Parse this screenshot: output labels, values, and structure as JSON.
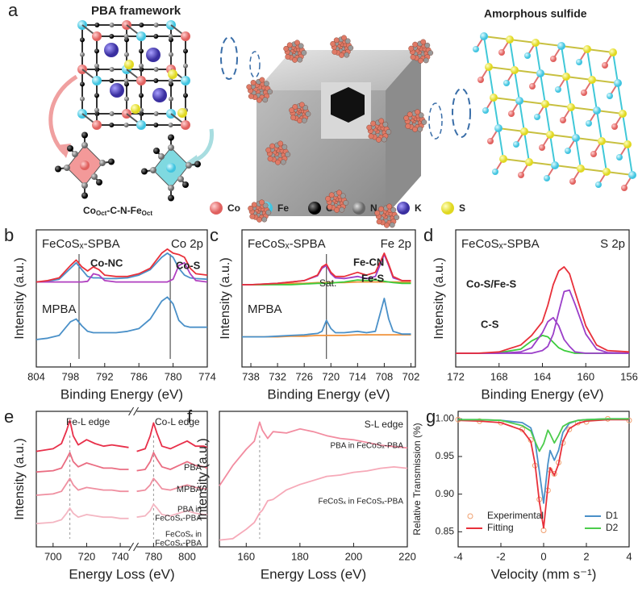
{
  "figure": {
    "panel": "a",
    "left_title": "PBA framework",
    "right_title": "Amorphous sulfide",
    "formula": [
      "Co",
      "Oct",
      "-C-N-Fe",
      "Oct"
    ],
    "legend": [
      "Co",
      "Fe",
      "C",
      "N",
      "K",
      "S"
    ]
  },
  "chart_data": [
    {
      "type": "line",
      "panel": "b",
      "xlabel": "Binding Energy (eV)",
      "ylabel": "Intensity (a.u.)",
      "xlim": [
        804,
        774
      ],
      "xticks": [
        804,
        798,
        792,
        786,
        780,
        774
      ],
      "ylim": [
        0,
        10
      ],
      "vlines": [
        796.5,
        780.5
      ],
      "annotations": [
        {
          "text": "FeCoSₓ-SPBA"
        },
        {
          "text": "Co 2p"
        },
        {
          "text": "Co-NC",
          "color": "#4a90c8"
        },
        {
          "text": "Co-S",
          "color": "#b03fc0"
        },
        {
          "text": "MPBA"
        }
      ],
      "x": [
        804,
        802,
        800,
        798,
        797,
        796,
        795,
        794,
        793,
        792,
        790,
        788,
        786,
        784,
        782,
        781,
        780,
        779,
        778,
        777,
        776,
        774
      ],
      "series": [
        {
          "color": "#4a90c8",
          "values": [
            6.2,
            6.25,
            6.4,
            7.2,
            7.6,
            7.1,
            6.6,
            6.5,
            6.5,
            6.45,
            6.45,
            6.5,
            6.7,
            7.1,
            8.0,
            8.3,
            8.0,
            7.2,
            6.7,
            6.5,
            6.45,
            6.4
          ]
        },
        {
          "color": "#b03fc0",
          "values": [
            6.2,
            6.2,
            6.2,
            6.2,
            6.2,
            6.2,
            6.25,
            6.8,
            6.7,
            6.3,
            6.2,
            6.2,
            6.2,
            6.2,
            6.2,
            6.2,
            6.4,
            7.4,
            7.6,
            6.8,
            6.3,
            6.2
          ]
        },
        {
          "color": "#e8303a",
          "values": [
            6.2,
            6.3,
            6.5,
            7.4,
            7.8,
            7.3,
            7.0,
            7.3,
            7.1,
            6.7,
            6.6,
            6.6,
            6.8,
            7.2,
            8.3,
            8.6,
            8.3,
            8.2,
            8.0,
            7.2,
            6.8,
            6.7
          ]
        },
        {
          "color": "#4a90c8",
          "values": [
            2.0,
            2.1,
            2.3,
            3.3,
            3.5,
            3.0,
            2.6,
            2.5,
            2.5,
            2.5,
            2.5,
            2.6,
            2.8,
            3.5,
            4.8,
            5.1,
            4.6,
            3.4,
            3.0,
            2.9,
            2.9,
            2.9
          ]
        }
      ]
    },
    {
      "type": "line",
      "panel": "c",
      "xlabel": "Binding Energy (eV)",
      "ylabel": "Intensity (a.u.)",
      "xlim": [
        740,
        701
      ],
      "xticks": [
        738,
        732,
        726,
        720,
        714,
        708,
        702
      ],
      "ylim": [
        0,
        10
      ],
      "vlines": [
        721
      ],
      "annotations": [
        {
          "text": "FeCoSₓ-SPBA"
        },
        {
          "text": "Fe 2p"
        },
        {
          "text": "Fe-CN",
          "color": "#9b3fc9"
        },
        {
          "text": "Fe-S",
          "color": "#3ccc3c"
        },
        {
          "text": "Sat."
        },
        {
          "text": "MPBA"
        }
      ],
      "x": [
        740,
        738,
        735,
        732,
        729,
        726,
        723,
        722,
        721,
        720,
        719,
        717,
        714,
        712,
        710,
        709,
        708,
        707,
        706,
        704,
        702
      ],
      "series": [
        {
          "color": "#f0923a",
          "values": [
            6.0,
            6.0,
            6.0,
            6.05,
            6.1,
            6.1,
            6.15,
            6.15,
            6.15,
            6.15,
            6.15,
            6.15,
            6.2,
            6.2,
            6.2,
            6.2,
            6.2,
            6.2,
            6.2,
            6.2,
            6.2
          ]
        },
        {
          "color": "#3ccc3c",
          "values": [
            6.0,
            6.0,
            6.0,
            6.0,
            6.0,
            6.05,
            6.1,
            6.1,
            6.1,
            6.1,
            6.15,
            6.2,
            6.35,
            6.3,
            6.35,
            6.3,
            6.25,
            6.2,
            6.15,
            6.1,
            6.1
          ]
        },
        {
          "color": "#9b3fc9",
          "values": [
            6.0,
            6.0,
            6.05,
            6.1,
            6.2,
            6.3,
            6.65,
            7.2,
            7.4,
            6.8,
            6.5,
            6.45,
            6.6,
            6.45,
            6.6,
            7.4,
            8.2,
            7.4,
            6.5,
            6.3,
            6.3
          ]
        },
        {
          "color": "#e8303a",
          "values": [
            6.0,
            6.0,
            6.05,
            6.1,
            6.2,
            6.3,
            6.7,
            7.3,
            7.5,
            6.9,
            6.6,
            6.6,
            6.9,
            6.7,
            6.9,
            7.6,
            8.3,
            7.5,
            6.6,
            6.3,
            6.3
          ]
        },
        {
          "color": "#f0923a",
          "values": [
            2.2,
            2.2,
            2.2,
            2.2,
            2.25,
            2.25,
            2.3,
            2.3,
            2.3,
            2.3,
            2.3,
            2.3,
            2.35,
            2.35,
            2.35,
            2.35,
            2.35,
            2.35,
            2.35,
            2.35,
            2.35
          ]
        },
        {
          "color": "#4a90c8",
          "values": [
            2.2,
            2.2,
            2.2,
            2.25,
            2.3,
            2.35,
            2.45,
            2.6,
            3.4,
            2.8,
            2.5,
            2.5,
            2.6,
            2.5,
            2.6,
            3.8,
            5.0,
            3.5,
            2.6,
            2.4,
            2.4
          ]
        }
      ]
    },
    {
      "type": "line",
      "panel": "d",
      "xlabel": "Binding Energy (eV)",
      "ylabel": "Intensity (a.u.)",
      "xlim": [
        172,
        156
      ],
      "xticks": [
        172,
        168,
        164,
        160,
        156
      ],
      "ylim": [
        0,
        10
      ],
      "annotations": [
        {
          "text": "FeCoSₓ-SPBA"
        },
        {
          "text": "S 2p"
        },
        {
          "text": "Co-S/Fe-S",
          "color": "#9b3fc9"
        },
        {
          "text": "C-S",
          "color": "#3ccc3c"
        }
      ],
      "x": [
        172,
        170,
        168,
        166,
        165,
        164,
        163.5,
        163,
        162.5,
        162,
        161.5,
        161,
        160,
        159,
        158,
        156
      ],
      "series": [
        {
          "color": "#3ccc3c",
          "values": [
            1.0,
            1.0,
            1.05,
            1.3,
            1.9,
            2.3,
            2.2,
            1.8,
            1.4,
            1.2,
            1.1,
            1.0,
            1.0,
            1.0,
            1.0,
            1.0
          ]
        },
        {
          "color": "#9b3fc9",
          "values": [
            1.0,
            1.0,
            1.0,
            1.1,
            1.4,
            2.5,
            3.3,
            3.6,
            3.0,
            2.0,
            1.5,
            1.1,
            1.0,
            1.0,
            1.0,
            1.0
          ]
        },
        {
          "color": "#9b3fc9",
          "values": [
            1.0,
            1.0,
            1.0,
            1.0,
            1.0,
            1.2,
            1.5,
            2.4,
            4.0,
            5.5,
            5.6,
            4.6,
            2.4,
            1.3,
            1.05,
            1.0
          ]
        },
        {
          "color": "#e8303a",
          "values": [
            1.0,
            1.0,
            1.1,
            1.6,
            2.3,
            3.3,
            4.5,
            6.0,
            7.0,
            7.3,
            6.8,
            5.5,
            3.0,
            1.6,
            1.2,
            1.1
          ]
        }
      ]
    },
    {
      "type": "line",
      "panel": "e",
      "xlabel": "Energy Loss (eV)",
      "ylabel": "Intensity (a.u.)",
      "xlim": [
        690,
        812
      ],
      "xbreak": [
        746,
        770
      ],
      "xticks": [
        700,
        720,
        740,
        780,
        800
      ],
      "ylim": [
        0,
        10.5
      ],
      "vlines": [
        710,
        780
      ],
      "annotations": [
        {
          "text": "Fe-L edge"
        },
        {
          "text": "Co-L edge"
        },
        {
          "text": "PBA"
        },
        {
          "text": "MPBA"
        },
        {
          "text": "PBA in"
        },
        {
          "text": "FeCoSₓ-PBA"
        },
        {
          "text": "FeCoSₓ in"
        },
        {
          "text": "FeCoSₓ-PBA"
        }
      ],
      "x": [
        690,
        700,
        705,
        708,
        710,
        712,
        715,
        720,
        725,
        730,
        735,
        740,
        745,
        770,
        775,
        778,
        780,
        782,
        785,
        790,
        795,
        800,
        805,
        810,
        812
      ],
      "series": [
        {
          "color": "#e8304a",
          "values": [
            7.4,
            7.6,
            8.0,
            9.0,
            9.8,
            8.6,
            7.9,
            8.3,
            8.0,
            7.8,
            7.9,
            7.8,
            7.7,
            7.4,
            7.6,
            8.6,
            9.6,
            8.8,
            7.8,
            7.6,
            7.9,
            8.2,
            7.8,
            7.8,
            7.7
          ]
        },
        {
          "color": "#ea6d82",
          "values": [
            5.8,
            5.9,
            6.1,
            6.8,
            7.3,
            6.6,
            6.2,
            6.5,
            6.3,
            6.1,
            6.1,
            6.0,
            6.0,
            5.9,
            6.0,
            6.6,
            7.3,
            6.8,
            6.2,
            6.0,
            6.3,
            6.6,
            6.3,
            6.2,
            6.1
          ]
        },
        {
          "color": "#ef8fa0",
          "values": [
            4.0,
            4.1,
            4.3,
            4.9,
            5.3,
            4.8,
            4.4,
            4.6,
            4.5,
            4.4,
            4.4,
            4.3,
            4.3,
            4.3,
            4.4,
            4.8,
            5.3,
            5.0,
            4.5,
            4.4,
            4.6,
            4.8,
            4.6,
            4.5,
            4.5
          ]
        },
        {
          "color": "#f4b6c2",
          "values": [
            1.8,
            1.9,
            2.1,
            2.6,
            3.0,
            2.6,
            2.3,
            2.5,
            2.4,
            2.3,
            2.3,
            2.2,
            2.2,
            2.3,
            2.4,
            2.8,
            3.3,
            3.0,
            2.5,
            2.4,
            2.6,
            2.8,
            2.6,
            2.5,
            2.5
          ]
        }
      ]
    },
    {
      "type": "line",
      "panel": "f",
      "xlabel": "Energy Loss (eV)",
      "ylabel": "Intensity (a.u.)",
      "xlim": [
        150,
        220
      ],
      "xticks": [
        160,
        180,
        200,
        220
      ],
      "ylim": [
        0,
        10
      ],
      "vlines": [
        165
      ],
      "annotations": [
        {
          "text": "S-L edge"
        },
        {
          "text": "PBA in FeCoSₓ-PBA"
        },
        {
          "text": "FeCoSₓ in FeCoSₓ-PBA"
        }
      ],
      "x": [
        150,
        155,
        160,
        163,
        165,
        166,
        168,
        170,
        175,
        180,
        185,
        190,
        195,
        200,
        205,
        210,
        215,
        220
      ],
      "series": [
        {
          "color": "#f28ca0",
          "values": [
            4.5,
            6.0,
            7.2,
            7.8,
            9.2,
            8.6,
            8.0,
            8.5,
            8.4,
            8.7,
            8.5,
            8.2,
            8.0,
            7.9,
            7.7,
            7.5,
            7.4,
            7.3
          ]
        },
        {
          "color": "#f6a9b8",
          "values": [
            0.5,
            0.6,
            1.3,
            1.8,
            2.5,
            2.7,
            3.4,
            3.5,
            4.2,
            4.6,
            4.9,
            5.2,
            5.3,
            5.5,
            5.6,
            5.8,
            5.9,
            5.8
          ]
        }
      ]
    },
    {
      "type": "line",
      "panel": "g",
      "xlabel": "Velocity (mm s⁻¹)",
      "ylabel": "Relative Transmission (%)",
      "xlim": [
        -4,
        4
      ],
      "xticks": [
        -4,
        -2,
        0,
        2,
        4
      ],
      "ylim": [
        0.83,
        1.01
      ],
      "yticks": [
        0.85,
        {
          "value": 0.9,
          "label": "0.90"
        },
        0.95,
        {
          "value": 1,
          "label": "1.00"
        }
      ],
      "x": [
        -4,
        -3,
        -2,
        -1,
        -0.6,
        -0.4,
        -0.2,
        0,
        0.2,
        0.3,
        0.5,
        0.7,
        0.9,
        1.2,
        1.6,
        2,
        3,
        4
      ],
      "series": [
        {
          "name": "Experimental",
          "color": "#f0a070",
          "marker": "circle",
          "legend": "lower left",
          "values": [
            0.999,
            0.997,
            0.995,
            0.986,
            0.972,
            0.938,
            0.893,
            0.852,
            0.905,
            0.932,
            0.927,
            0.942,
            0.968,
            0.986,
            0.995,
            0.996,
            1.0,
            0.998
          ]
        },
        {
          "name": "Fitting",
          "color": "#e8303a",
          "legend": "lower left",
          "values": [
            0.998,
            0.997,
            0.995,
            0.985,
            0.97,
            0.94,
            0.89,
            0.855,
            0.91,
            0.935,
            0.925,
            0.94,
            0.97,
            0.987,
            0.994,
            0.997,
            0.999,
            0.999
          ]
        },
        {
          "name": "D1",
          "color": "#4a90c8",
          "legend": "lower right",
          "values": [
            0.999,
            0.999,
            0.998,
            0.995,
            0.988,
            0.97,
            0.93,
            0.888,
            0.94,
            0.958,
            0.945,
            0.958,
            0.982,
            0.994,
            0.998,
            0.999,
            1.0,
            1.0
          ]
        },
        {
          "name": "D2",
          "color": "#4ccc4c",
          "legend": "lower right",
          "values": [
            0.999,
            0.999,
            0.998,
            0.991,
            0.984,
            0.97,
            0.957,
            0.967,
            0.985,
            0.98,
            0.968,
            0.978,
            0.99,
            0.995,
            0.998,
            0.999,
            1.0,
            1.0
          ]
        }
      ]
    }
  ]
}
